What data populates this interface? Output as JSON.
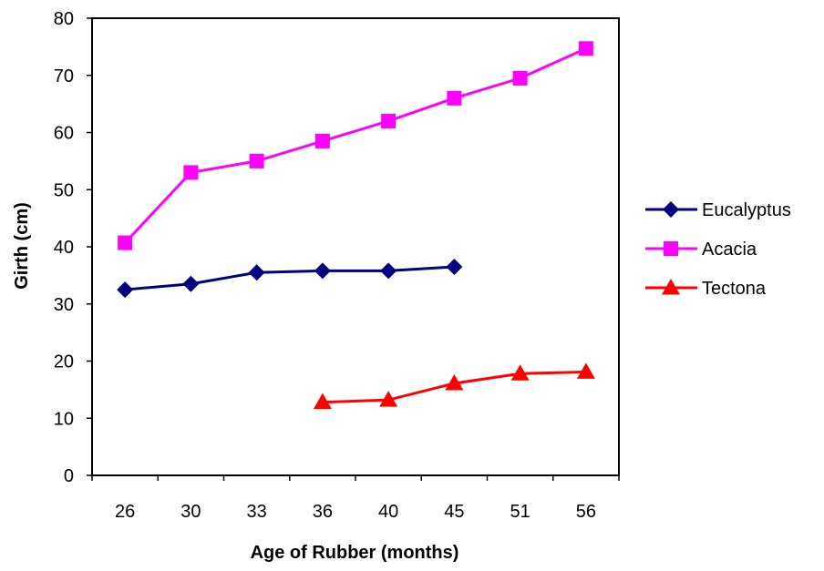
{
  "chart_data": {
    "type": "line",
    "title": "",
    "xlabel": "Age of Rubber (months)",
    "ylabel": "Girth (cm)",
    "categories": [
      "26",
      "30",
      "33",
      "36",
      "40",
      "45",
      "51",
      "56"
    ],
    "ylim": [
      0,
      80
    ],
    "yticks": [
      0,
      10,
      20,
      30,
      40,
      50,
      60,
      70,
      80
    ],
    "grid": false,
    "legend_position": "right",
    "series": [
      {
        "name": "Eucalyptus",
        "color": "#000080",
        "marker": "diamond",
        "values": [
          32.5,
          33.5,
          35.5,
          35.8,
          35.8,
          36.5,
          null,
          null
        ]
      },
      {
        "name": "Acacia",
        "color": "#ff00ff",
        "marker": "square",
        "values": [
          40.7,
          53,
          55,
          58.5,
          62,
          66,
          69.5,
          74.7
        ]
      },
      {
        "name": "Tectona",
        "color": "#ff0000",
        "marker": "triangle",
        "values": [
          null,
          null,
          null,
          12.8,
          13.2,
          16.1,
          17.8,
          18.1
        ]
      }
    ]
  }
}
